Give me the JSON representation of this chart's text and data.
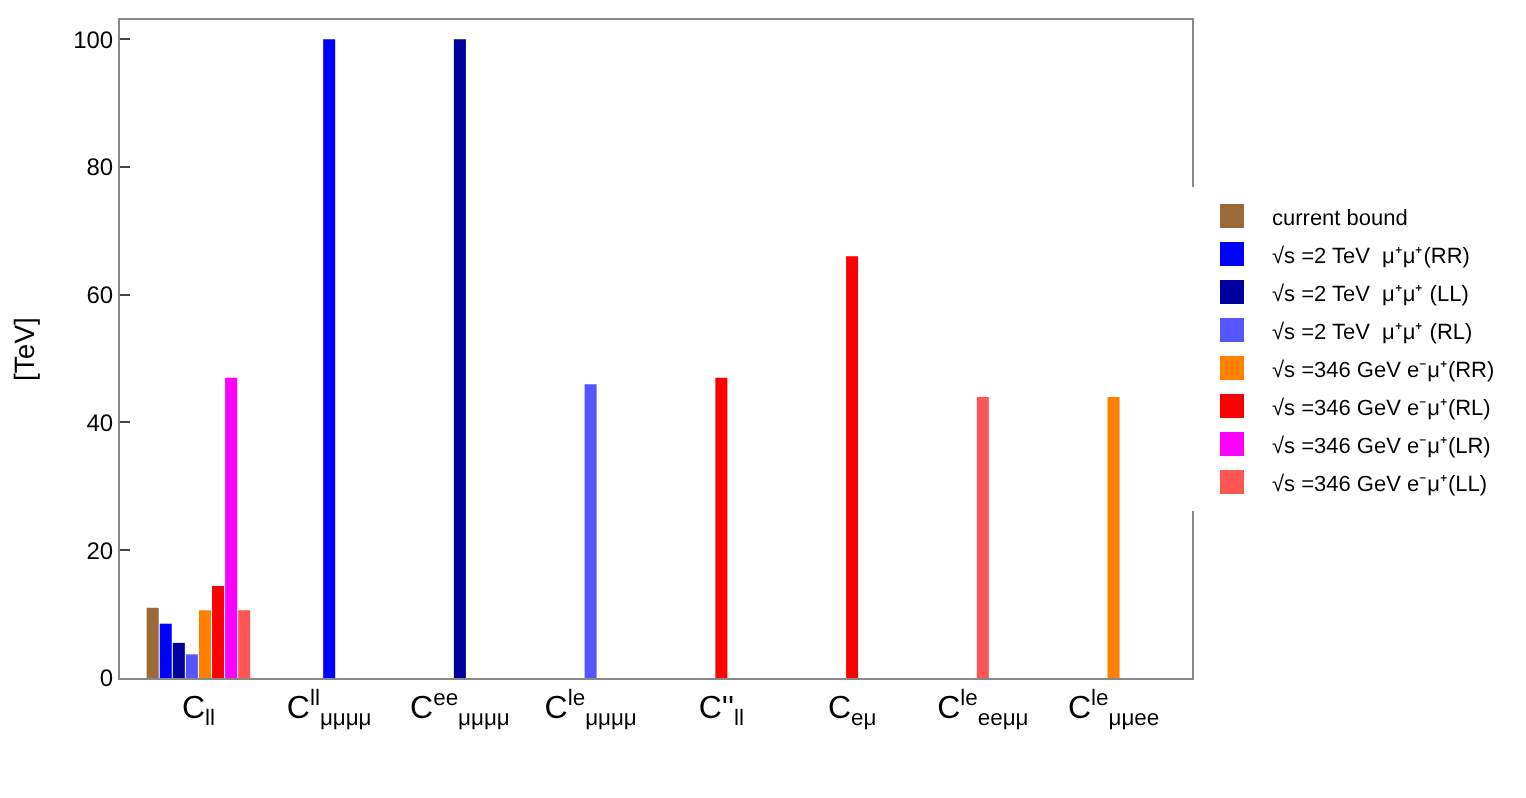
{
  "chart_data": {
    "type": "bar",
    "ylabel": "[TeV]",
    "categories": [
      "C$_{ll}$",
      "C$^{ll}$$_{μμμμ}$",
      "C$^{ee}$$_{μμμμ}$",
      "C$^{le}$$_{μμμμ}$",
      "C''$_{ll}$",
      "C$_{eμ}$",
      "C$^{le}$$_{eeμμ}$",
      "C$^{le}$$_{μμee}$"
    ],
    "series": [
      {
        "name": "current bound",
        "color": "#9a6a3a",
        "values": [
          11,
          null,
          null,
          null,
          null,
          null,
          null,
          null
        ]
      },
      {
        "name": "√s =2 TeV  μ⁺μ⁺(RR)",
        "color": "#0000ff",
        "values": [
          8.5,
          100,
          null,
          null,
          null,
          null,
          null,
          null
        ]
      },
      {
        "name": "√s =2 TeV  μ⁺μ⁺ (LL)",
        "color": "#00009f",
        "values": [
          5.5,
          null,
          100,
          null,
          null,
          null,
          null,
          null
        ]
      },
      {
        "name": "√s =2 TeV  μ⁺μ⁺ (RL)",
        "color": "#5555ff",
        "values": [
          3.7,
          null,
          null,
          46,
          null,
          null,
          null,
          null
        ]
      },
      {
        "name": "√s =346 GeV e⁻μ⁺(RR)",
        "color": "#ff8000",
        "values": [
          10.6,
          null,
          null,
          null,
          null,
          null,
          null,
          44
        ]
      },
      {
        "name": "√s =346 GeV e⁻μ⁺(RL)",
        "color": "#ff0000",
        "values": [
          14.4,
          null,
          null,
          null,
          47,
          66,
          null,
          null
        ]
      },
      {
        "name": "√s =346 GeV e⁻μ⁺(LR)",
        "color": "#ff00ff",
        "values": [
          47,
          null,
          null,
          null,
          null,
          null,
          null,
          null
        ]
      },
      {
        "name": "√s =346 GeV e⁻μ⁺(LL)",
        "color": "#ff5555",
        "values": [
          10.6,
          null,
          null,
          null,
          null,
          null,
          44,
          null
        ]
      }
    ],
    "ylim": [
      0,
      103
    ],
    "yticks": [
      0,
      20,
      40,
      60,
      80,
      100
    ],
    "legend": "right"
  }
}
